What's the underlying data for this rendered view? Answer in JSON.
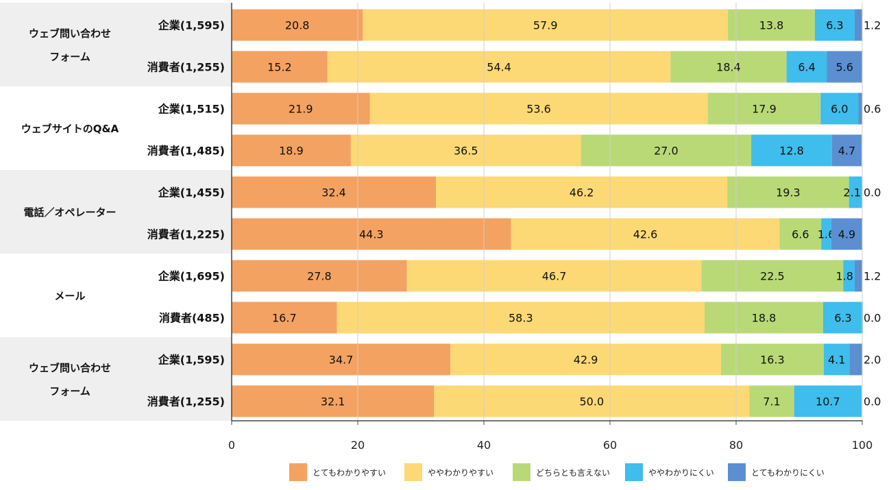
{
  "chart_data": {
    "type": "bar",
    "orientation": "horizontal",
    "stacked": true,
    "xlim": [
      0,
      100
    ],
    "xticks": [
      0,
      20,
      40,
      60,
      80,
      100
    ],
    "legend_position": "bottom",
    "groups": [
      {
        "label_lines": [
          "ウェブ問い合わせ",
          "フォーム"
        ],
        "shaded": true,
        "rows": [
          {
            "label": "企業(1,595)",
            "values": [
              20.8,
              57.9,
              13.8,
              6.3,
              1.2
            ]
          },
          {
            "label": "消費者(1,255)",
            "values": [
              15.2,
              54.4,
              18.4,
              6.4,
              5.6
            ]
          }
        ]
      },
      {
        "label_lines": [
          "ウェブサイトのQ&A"
        ],
        "shaded": false,
        "rows": [
          {
            "label": "企業(1,515)",
            "values": [
              21.9,
              53.6,
              17.9,
              6.0,
              0.6
            ]
          },
          {
            "label": "消費者(1,485)",
            "values": [
              18.9,
              36.5,
              27.0,
              12.8,
              4.7
            ]
          }
        ]
      },
      {
        "label_lines": [
          "電話／オペレーター"
        ],
        "shaded": true,
        "rows": [
          {
            "label": "企業(1,455)",
            "values": [
              32.4,
              46.2,
              19.3,
              2.1,
              0.0
            ]
          },
          {
            "label": "消費者(1,225)",
            "values": [
              44.3,
              42.6,
              6.6,
              1.6,
              4.9
            ]
          }
        ]
      },
      {
        "label_lines": [
          "メール"
        ],
        "shaded": false,
        "rows": [
          {
            "label": "企業(1,695)",
            "values": [
              27.8,
              46.7,
              22.5,
              1.8,
              1.2
            ]
          },
          {
            "label": "消費者(485)",
            "values": [
              16.7,
              58.3,
              18.8,
              6.3,
              0.0
            ]
          }
        ]
      },
      {
        "label_lines": [
          "ウェブ問い合わせ",
          "フォーム"
        ],
        "shaded": true,
        "rows": [
          {
            "label": "企業(1,595)",
            "values": [
              34.7,
              42.9,
              16.3,
              4.1,
              2.0
            ]
          },
          {
            "label": "消費者(1,255)",
            "values": [
              32.1,
              50.0,
              7.1,
              10.7,
              0.0
            ]
          }
        ]
      }
    ],
    "series": [
      {
        "name": "とてもわかりやすい",
        "color": "#F4A261"
      },
      {
        "name": "ややわかりやすい",
        "color": "#FCD975"
      },
      {
        "name": "どちらとも言えない",
        "color": "#B9D977"
      },
      {
        "name": "ややわかりにくい",
        "color": "#3FBDEC"
      },
      {
        "name": "とてもわかりにくい",
        "color": "#5B8FD1"
      }
    ],
    "group_shade_color": "#EFEFEF"
  }
}
